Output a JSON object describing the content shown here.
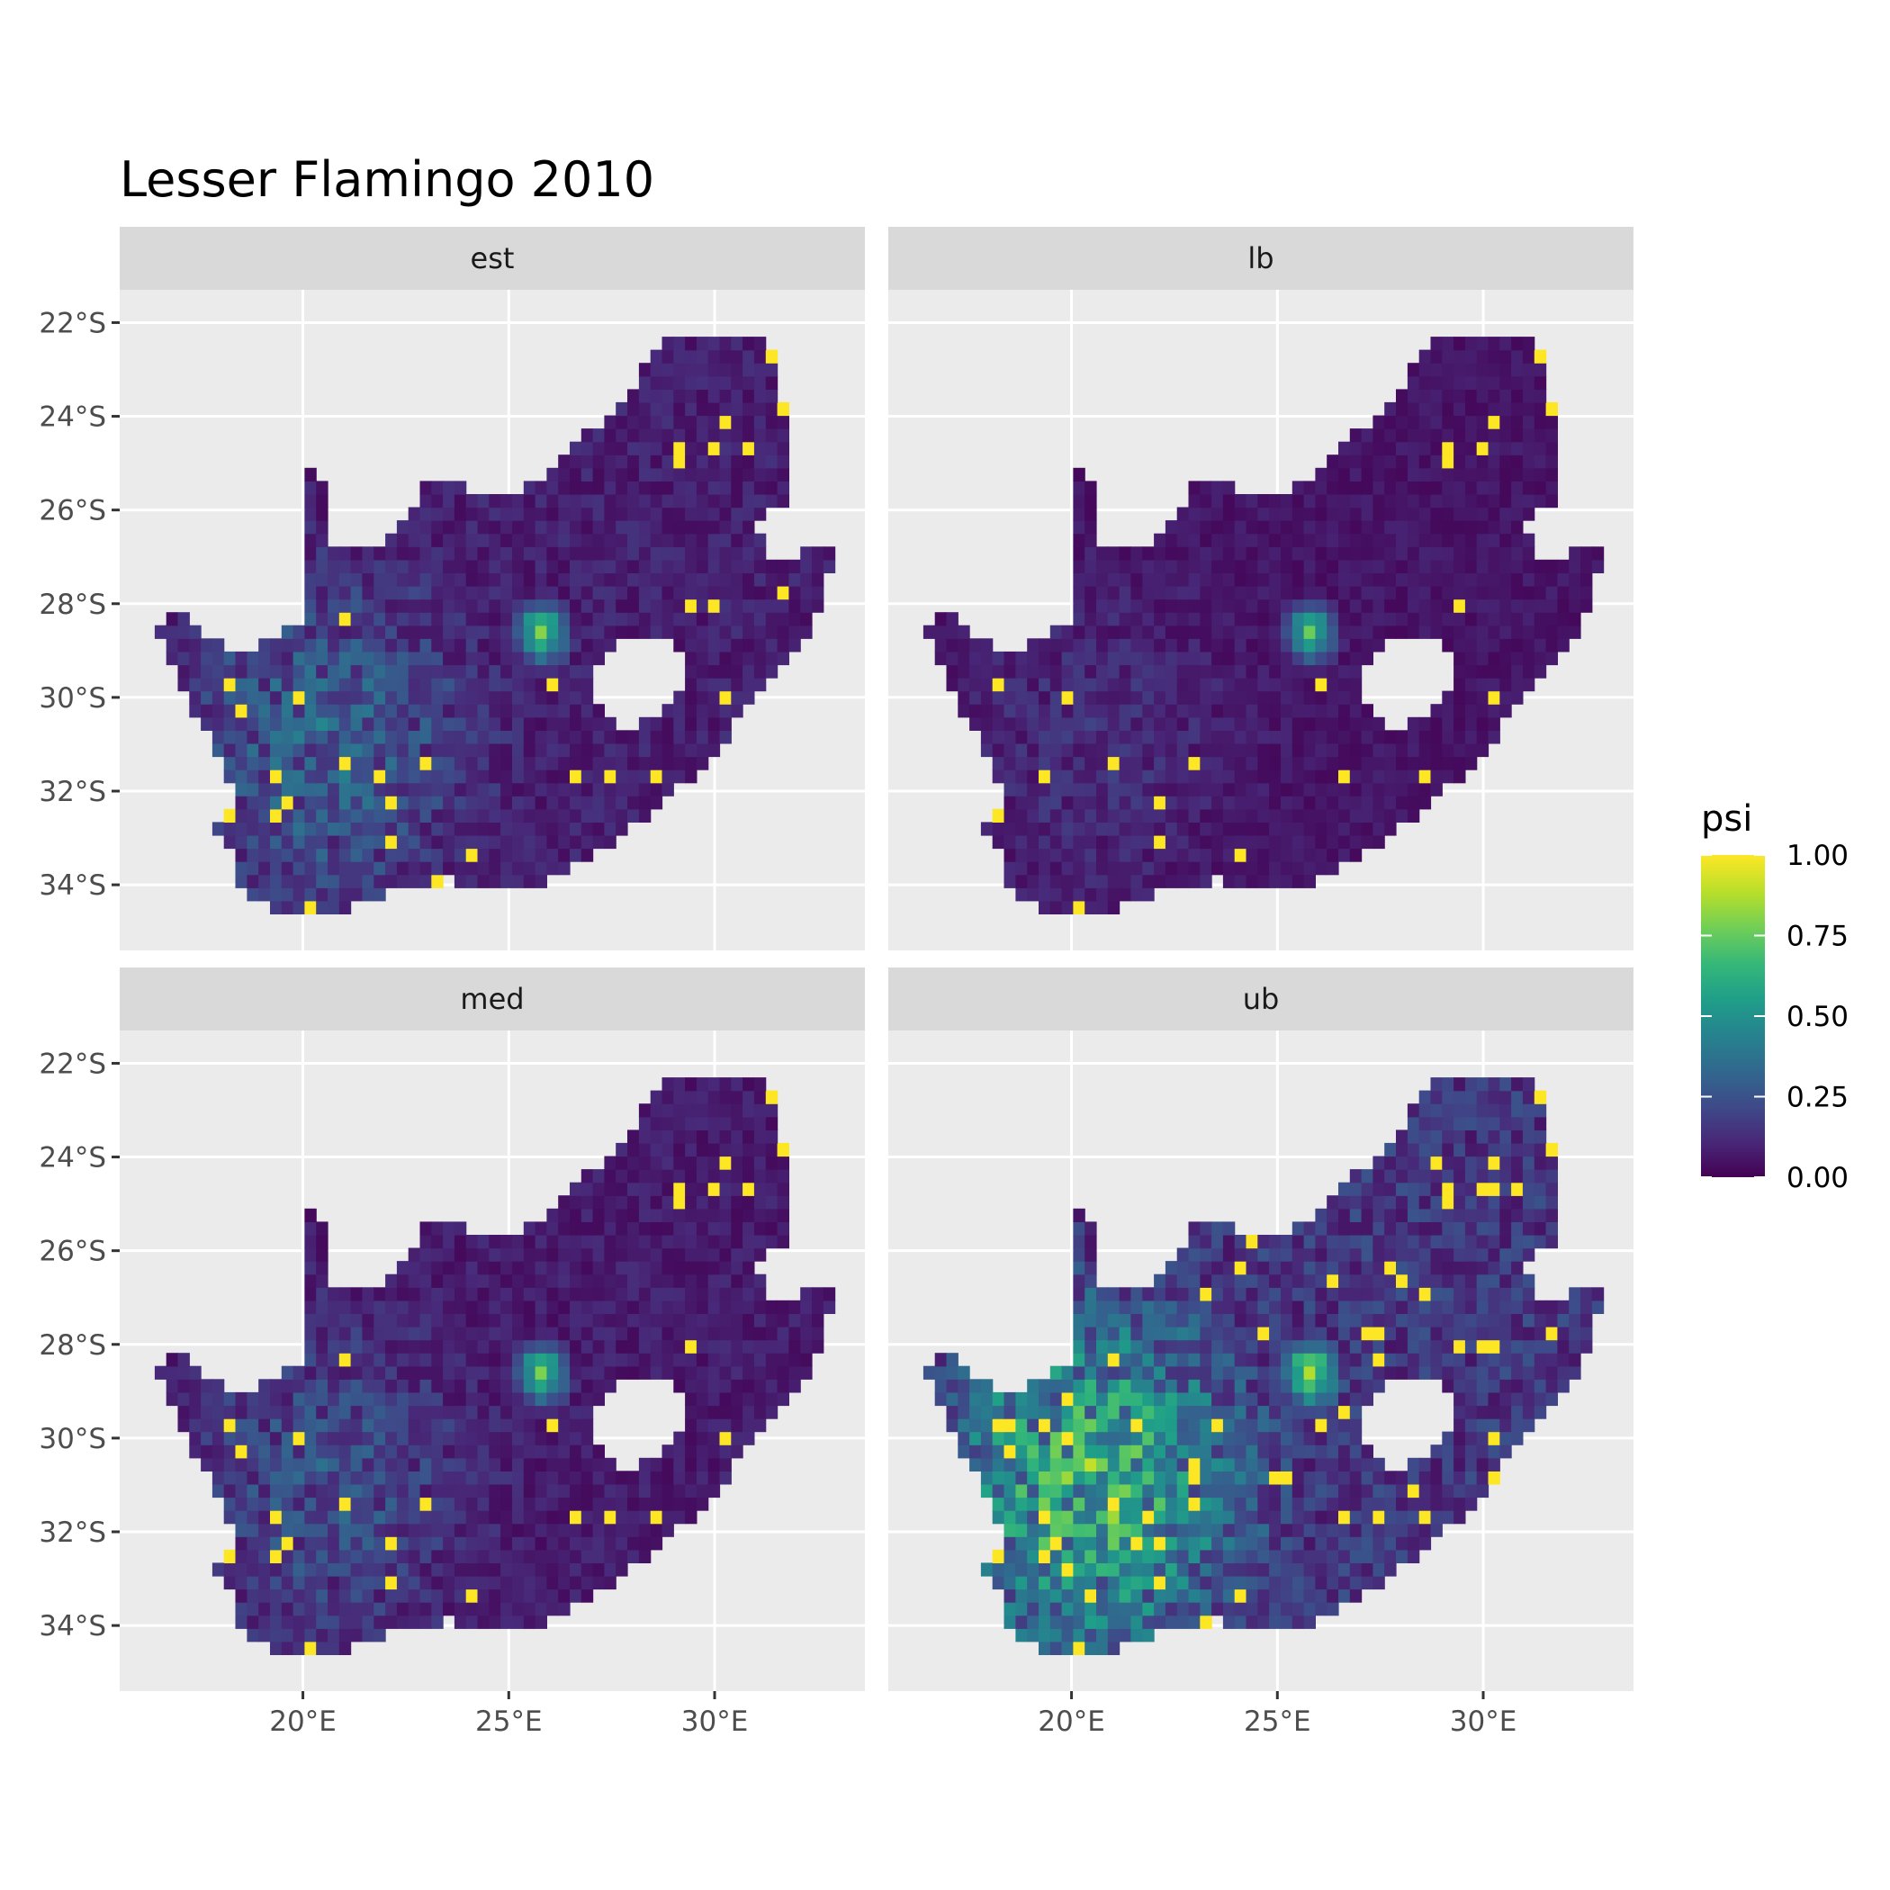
{
  "chart_data": {
    "type": "heatmap",
    "title": "Lesser Flamingo 2010",
    "xlabel": "",
    "ylabel": "",
    "x_ticks": [
      "20°E",
      "25°E",
      "30°E"
    ],
    "x_tick_values": [
      20,
      25,
      30
    ],
    "y_ticks": [
      "22°S",
      "24°S",
      "26°S",
      "28°S",
      "30°S",
      "32°S",
      "34°S"
    ],
    "y_tick_values": [
      -22,
      -24,
      -26,
      -28,
      -30,
      -32,
      -34
    ],
    "xlim": [
      15.55,
      33.65
    ],
    "ylim": [
      -35.4,
      -21.3
    ],
    "panels": [
      {
        "label": "est",
        "mean_psi": 0.3
      },
      {
        "label": "lb",
        "mean_psi": 0.12
      },
      {
        "label": "med",
        "mean_psi": 0.24
      },
      {
        "label": "ub",
        "mean_psi": 0.62
      }
    ],
    "legend": {
      "title": "psi",
      "placement": "right",
      "labels": [
        "1.00",
        "0.75",
        "0.50",
        "0.25",
        "0.00"
      ],
      "values": [
        1.0,
        0.75,
        0.5,
        0.25,
        0.0
      ],
      "range": [
        0,
        1
      ]
    },
    "colors": {
      "panel_background": "#ebebeb",
      "strip_background": "#d9d9d9",
      "grid": "#ffffff",
      "viridis": [
        "#440154",
        "#482878",
        "#3e4a89",
        "#31688e",
        "#26828e",
        "#1f9e89",
        "#35b779",
        "#6ece58",
        "#b5de2b",
        "#fde725"
      ]
    }
  }
}
